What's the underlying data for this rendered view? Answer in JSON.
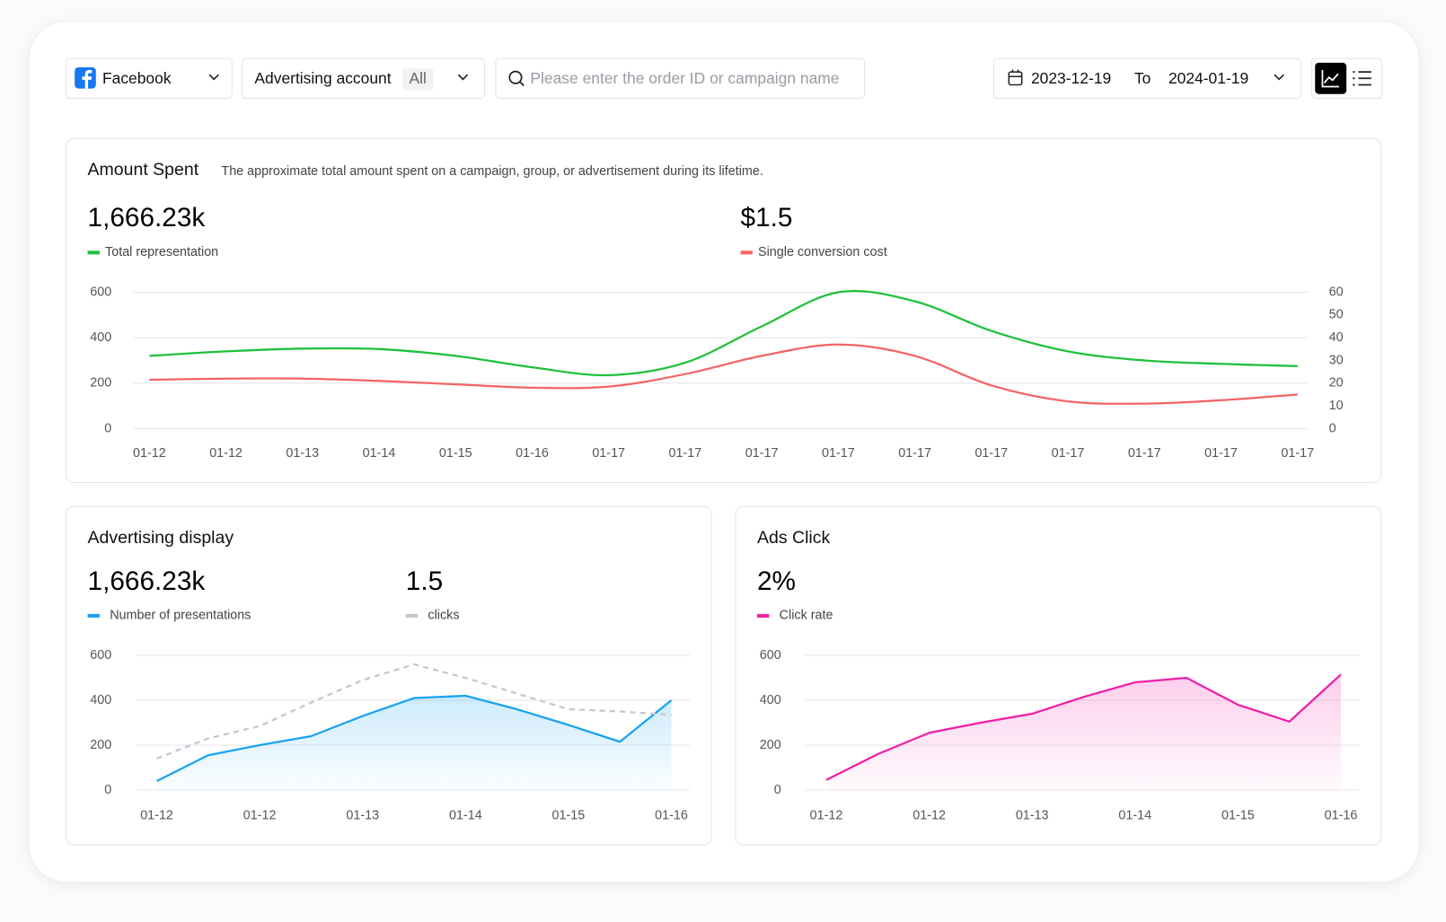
{
  "toolbar": {
    "platform": "Facebook",
    "account_label": "Advertising account",
    "account_value": "All",
    "search_placeholder": "Please enter the order ID or campaign name",
    "date_from": "2023-12-19",
    "date_sep": "To",
    "date_to": "2024-01-19"
  },
  "chart_data": [
    {
      "type": "line",
      "title": "Amount Spent",
      "subtitle": "The approximate total amount spent on a campaign, group, or advertisement during its lifetime.",
      "categories": [
        "01-12",
        "01-12",
        "01-13",
        "01-14",
        "01-15",
        "01-16",
        "01-17",
        "01-17",
        "01-17",
        "01-17",
        "01-17",
        "01-17",
        "01-17",
        "01-17",
        "01-17",
        "01-17"
      ],
      "series": [
        {
          "name": "Total representation",
          "headline": "1,666.23k",
          "color": "#1fc13c",
          "values": [
            320,
            340,
            352,
            350,
            320,
            270,
            235,
            290,
            450,
            600,
            560,
            430,
            340,
            300,
            285,
            275
          ]
        },
        {
          "name": "Single conversion cost",
          "headline": "$1.5",
          "color": "#f56464",
          "axis": "y2",
          "values": [
            21.5,
            22,
            22,
            21,
            19.5,
            18,
            18.5,
            24,
            32,
            37,
            32,
            19,
            12,
            11,
            12.5,
            15
          ]
        }
      ],
      "ylim": [
        0,
        600
      ],
      "yticks": [
        0,
        200,
        400,
        600
      ],
      "y2lim": [
        0,
        60
      ],
      "y2ticks": [
        0,
        10,
        20,
        30,
        40,
        50,
        60
      ],
      "grid": true,
      "smooth": true
    },
    {
      "type": "line",
      "title": "Advertising display",
      "categories": [
        "01-12",
        null,
        "01-12",
        null,
        "01-13",
        null,
        "01-14",
        null,
        "01-15",
        null,
        "01-16"
      ],
      "series": [
        {
          "name": "Number of presentations",
          "headline": "1,666.23k",
          "color": "#1aa3f0",
          "area": true,
          "values": [
            40,
            155,
            200,
            240,
            330,
            410,
            420,
            360,
            290,
            215,
            400
          ]
        },
        {
          "name": "clicks",
          "headline": "1.5",
          "color": "#c5c6d3",
          "dashed": true,
          "values": [
            140,
            230,
            285,
            390,
            490,
            560,
            500,
            430,
            360,
            350,
            335
          ]
        }
      ],
      "ylim": [
        0,
        600
      ],
      "yticks": [
        0,
        200,
        400,
        600
      ],
      "grid": true,
      "smooth": false
    },
    {
      "type": "line",
      "title": "Ads Click",
      "categories": [
        "01-12",
        null,
        "01-12",
        null,
        "01-13",
        null,
        "01-14",
        null,
        "01-15",
        null,
        "01-16"
      ],
      "series": [
        {
          "name": "Click rate",
          "headline": "2%",
          "color": "#f01fa8",
          "area": true,
          "values": [
            45,
            160,
            255,
            300,
            340,
            415,
            480,
            500,
            380,
            305,
            515
          ]
        }
      ],
      "ylim": [
        0,
        600
      ],
      "yticks": [
        0,
        200,
        400,
        600
      ],
      "grid": true,
      "smooth": false
    }
  ]
}
